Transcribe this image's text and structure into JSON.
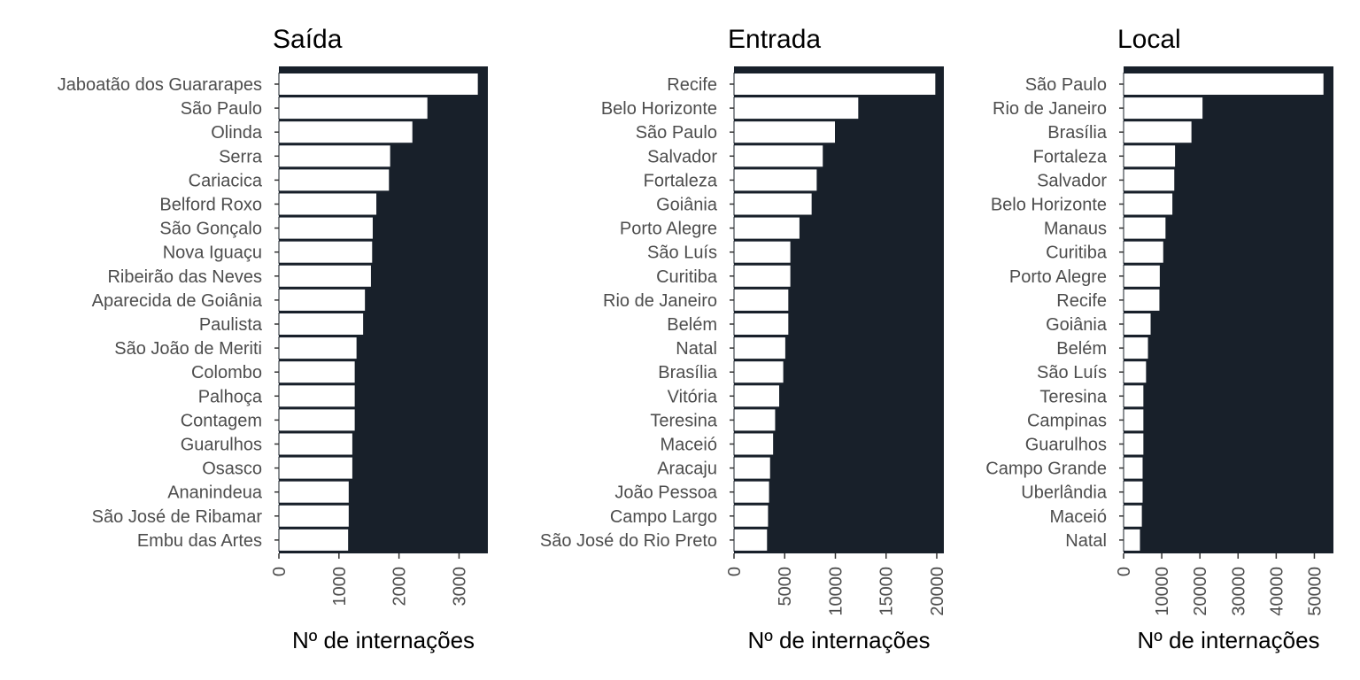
{
  "colors": {
    "panel_bg": "#18202a",
    "bar_fill": "#ffffff",
    "bar_stroke": "#18202a",
    "text_muted": "#4d4d4d",
    "text": "#000000"
  },
  "chart_data": [
    {
      "type": "bar",
      "orientation": "horizontal",
      "title": "Saída",
      "xlabel": "Nº de internações",
      "categories": [
        "Jaboatão dos Guararapes",
        "São Paulo",
        "Olinda",
        "Serra",
        "Cariacica",
        "Belford Roxo",
        "São Gonçalo",
        "Nova Iguaçu",
        "Ribeirão das Neves",
        "Aparecida de Goiânia",
        "Paulista",
        "São João de Meriti",
        "Colombo",
        "Palhoça",
        "Contagem",
        "Guarulhos",
        "Osasco",
        "Ananindeua",
        "São José de Ribamar",
        "Embu das Artes"
      ],
      "values": [
        3320,
        2480,
        2230,
        1860,
        1840,
        1630,
        1570,
        1560,
        1540,
        1440,
        1410,
        1300,
        1270,
        1270,
        1270,
        1230,
        1230,
        1170,
        1170,
        1160
      ],
      "xlim": [
        0,
        3480
      ],
      "xticks": [
        0,
        1000,
        2000,
        3000
      ],
      "xtick_labels": [
        "0",
        "1000",
        "2000",
        "3000"
      ]
    },
    {
      "type": "bar",
      "orientation": "horizontal",
      "title": "Entrada",
      "xlabel": "Nº de internações",
      "categories": [
        "Recife",
        "Belo Horizonte",
        "São Paulo",
        "Salvador",
        "Fortaleza",
        "Goiânia",
        "Porto Alegre",
        "São Luís",
        "Curitiba",
        "Rio de Janeiro",
        "Belém",
        "Natal",
        "Brasília",
        "Vitória",
        "Teresina",
        "Maceió",
        "Aracaju",
        "João Pessoa",
        "Campo Largo",
        "São José do Rio Preto"
      ],
      "values": [
        19900,
        12300,
        10000,
        8800,
        8200,
        7700,
        6500,
        5600,
        5600,
        5400,
        5400,
        5100,
        4900,
        4500,
        4100,
        3900,
        3600,
        3500,
        3400,
        3300
      ],
      "xlim": [
        0,
        20700
      ],
      "xticks": [
        0,
        5000,
        10000,
        15000,
        20000
      ],
      "xtick_labels": [
        "0",
        "5000",
        "10000",
        "15000",
        "20000"
      ]
    },
    {
      "type": "bar",
      "orientation": "horizontal",
      "title": "Local",
      "xlabel": "Nº de internações",
      "categories": [
        "São Paulo",
        "Rio de Janeiro",
        "Brasília",
        "Fortaleza",
        "Salvador",
        "Belo Horizonte",
        "Manaus",
        "Curitiba",
        "Porto Alegre",
        "Recife",
        "Goiânia",
        "Belém",
        "São Luís",
        "Teresina",
        "Campinas",
        "Guarulhos",
        "Campo Grande",
        "Uberlândia",
        "Maceió",
        "Natal"
      ],
      "values": [
        52500,
        20800,
        17900,
        13600,
        13400,
        12900,
        11100,
        10500,
        9600,
        9500,
        7200,
        6500,
        6000,
        5300,
        5300,
        5300,
        5100,
        5100,
        4900,
        4400
      ],
      "xlim": [
        0,
        55000
      ],
      "xticks": [
        0,
        10000,
        20000,
        30000,
        40000,
        50000
      ],
      "xtick_labels": [
        "0",
        "10000",
        "20000",
        "30000",
        "40000",
        "50000"
      ]
    }
  ]
}
